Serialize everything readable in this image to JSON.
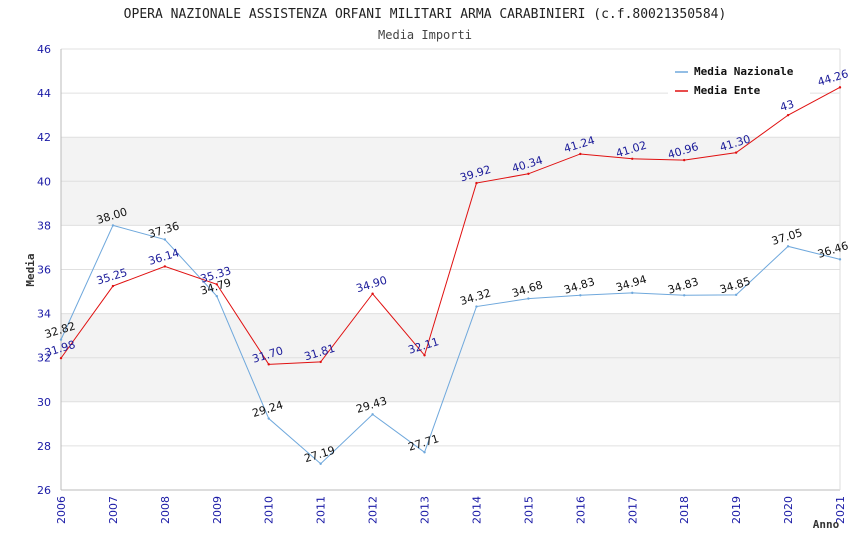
{
  "chart_data": {
    "type": "line",
    "title": "OPERA NAZIONALE ASSISTENZA ORFANI MILITARI ARMA CARABINIERI (c.f.80021350584)",
    "subtitle": "Media Importi",
    "xlabel": "Anno",
    "ylabel": "Media",
    "ylim": [
      26,
      46
    ],
    "yticks": [
      26,
      28,
      30,
      32,
      34,
      36,
      38,
      40,
      42,
      44,
      46
    ],
    "categories": [
      "2006",
      "2007",
      "2008",
      "2009",
      "2010",
      "2011",
      "2012",
      "2013",
      "2014",
      "2015",
      "2016",
      "2017",
      "2018",
      "2019",
      "2020",
      "2021"
    ],
    "grid": true,
    "legend_position": "top-right",
    "series": [
      {
        "name": "Media Nazionale",
        "color": "#6fa8dc",
        "label_color": "#111111",
        "values": [
          32.82,
          38.0,
          37.36,
          34.79,
          29.24,
          27.19,
          29.43,
          27.71,
          34.32,
          34.68,
          34.83,
          34.94,
          34.83,
          34.85,
          37.05,
          36.46
        ],
        "labels": [
          "32.82",
          "38.00",
          "37.36",
          "34.79",
          "29.24",
          "27.19",
          "29.43",
          "27.71",
          "34.32",
          "34.68",
          "34.83",
          "34.94",
          "34.83",
          "34.85",
          "37.05",
          "36.46"
        ]
      },
      {
        "name": "Media Ente",
        "color": "#e01010",
        "label_color": "#1a1a99",
        "values": [
          31.98,
          35.25,
          36.14,
          35.33,
          31.7,
          31.81,
          34.9,
          32.11,
          39.92,
          40.34,
          41.24,
          41.02,
          40.96,
          41.3,
          43.0,
          44.26
        ],
        "labels": [
          "31.98",
          "35.25",
          "36.14",
          "35.33",
          "31.70",
          "31.81",
          "34.90",
          "32.11",
          "39.92",
          "40.34",
          "41.24",
          "41.02",
          "40.96",
          "41.30",
          "43",
          "44.26"
        ]
      }
    ]
  }
}
